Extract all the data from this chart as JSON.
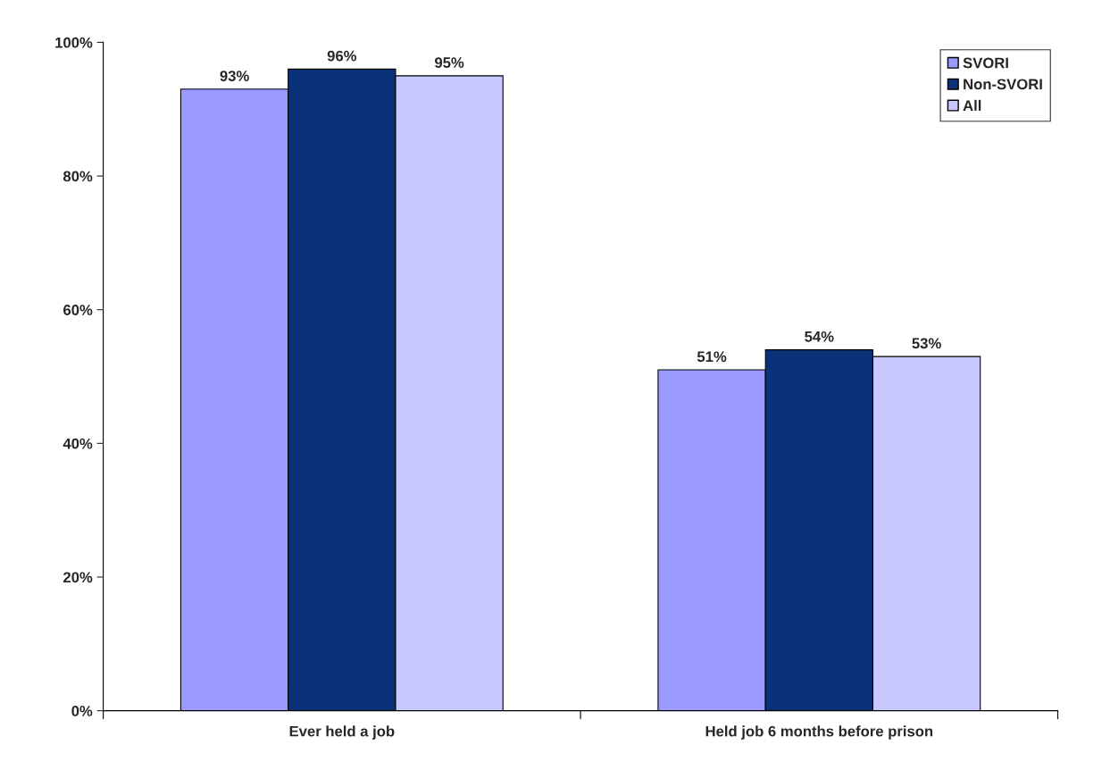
{
  "chart_data": {
    "type": "bar",
    "categories": [
      "Ever held a job",
      "Held job 6 months before prison"
    ],
    "series": [
      {
        "name": "SVORI",
        "color": "#9999ff",
        "values": [
          93,
          51
        ]
      },
      {
        "name": "Non-SVORI",
        "color": "#0b3179",
        "values": [
          96,
          54
        ]
      },
      {
        "name": "All",
        "color": "#c8c8ff",
        "values": [
          95,
          53
        ]
      }
    ],
    "ylim": [
      0,
      100
    ],
    "yticks": [
      {
        "value": 0,
        "label": "0%"
      },
      {
        "value": 20,
        "label": "20%"
      },
      {
        "value": 40,
        "label": "40%"
      },
      {
        "value": 60,
        "label": "60%"
      },
      {
        "value": 80,
        "label": "80%"
      },
      {
        "value": 100,
        "label": "100%"
      }
    ],
    "value_labels": [
      [
        "93%",
        "51%"
      ],
      [
        "96%",
        "54%"
      ],
      [
        "95%",
        "53%"
      ]
    ],
    "grid": false,
    "legend": "top right"
  }
}
